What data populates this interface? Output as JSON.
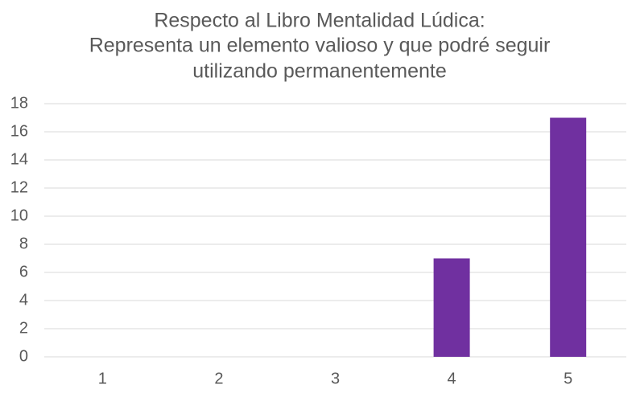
{
  "chart_data": {
    "type": "bar",
    "title": [
      "Respecto al Libro Mentalidad Lúdica:",
      "Representa un elemento valioso y que podré seguir",
      "utilizando permanentemente"
    ],
    "categories": [
      "1",
      "2",
      "3",
      "4",
      "5"
    ],
    "values": [
      0,
      0,
      0,
      7,
      17
    ],
    "color": "#7030a0",
    "ylim": [
      0,
      18
    ],
    "yticks": [
      0,
      2,
      4,
      6,
      8,
      10,
      12,
      14,
      16,
      18
    ],
    "grid": true
  }
}
